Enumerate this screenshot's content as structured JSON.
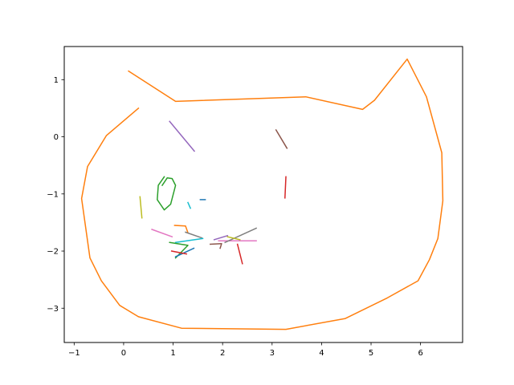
{
  "chart_data": {
    "type": "line",
    "title": "",
    "xlabel": "",
    "ylabel": "",
    "xlim": [
      -1.2,
      6.85
    ],
    "ylim": [
      -3.6,
      1.58
    ],
    "grid": false,
    "x_ticks": [
      -1,
      0,
      1,
      2,
      3,
      4,
      5,
      6
    ],
    "y_ticks": [
      -3,
      -2,
      -1,
      0,
      1
    ],
    "x_tick_labels": [
      "−1",
      "0",
      "1",
      "2",
      "3",
      "4",
      "5",
      "6"
    ],
    "y_tick_labels": [
      "−3",
      "−2",
      "−1",
      "0",
      "1"
    ],
    "series": [
      {
        "color": "#ff7f0e",
        "x": [
          0.3,
          -0.35,
          -0.73,
          -0.85,
          -0.68,
          -0.45,
          -0.08,
          0.3,
          1.17,
          3.28,
          4.48,
          5.33,
          5.95,
          6.18,
          6.35,
          6.45,
          6.43,
          6.12,
          5.73,
          5.07,
          4.83,
          3.68,
          1.05,
          0.1
        ],
        "y": [
          0.5,
          0.02,
          -0.52,
          -1.08,
          -2.12,
          -2.52,
          -2.95,
          -3.15,
          -3.35,
          -3.37,
          -3.18,
          -2.82,
          -2.52,
          -2.15,
          -1.78,
          -1.12,
          -0.28,
          0.7,
          1.36,
          0.64,
          0.48,
          0.7,
          0.62,
          1.15
        ]
      },
      {
        "color": "#9467bd",
        "x": [
          0.93,
          1.43
        ],
        "y": [
          0.27,
          -0.25
        ]
      },
      {
        "color": "#8c564b",
        "x": [
          3.08,
          3.3
        ],
        "y": [
          0.12,
          -0.2
        ]
      },
      {
        "color": "#d62728",
        "x": [
          3.28,
          3.26
        ],
        "y": [
          -0.7,
          -1.07
        ]
      },
      {
        "color": "#2ca02c",
        "x": [
          0.82,
          0.7,
          0.68,
          0.82,
          0.95,
          1.05,
          0.98,
          0.88,
          0.78
        ],
        "y": [
          -0.7,
          -0.85,
          -1.1,
          -1.28,
          -1.18,
          -0.85,
          -0.73,
          -0.72,
          -0.85
        ]
      },
      {
        "color": "#1f77b4",
        "x": [
          1.55,
          1.65
        ],
        "y": [
          -1.1,
          -1.1
        ]
      },
      {
        "color": "#17becf",
        "x": [
          1.3,
          1.35
        ],
        "y": [
          -1.15,
          -1.25
        ]
      },
      {
        "color": "#bcbd22",
        "x": [
          0.33,
          0.37
        ],
        "y": [
          -1.05,
          -1.42
        ]
      },
      {
        "color": "#e377c2",
        "x": [
          0.57,
          0.98
        ],
        "y": [
          -1.62,
          -1.75
        ]
      },
      {
        "color": "#ff7f0e",
        "x": [
          1.03,
          1.25,
          1.3
        ],
        "y": [
          -1.55,
          -1.56,
          -1.68
        ]
      },
      {
        "color": "#7f7f7f",
        "x": [
          1.25,
          1.58
        ],
        "y": [
          -1.67,
          -1.77
        ]
      },
      {
        "color": "#17becf",
        "x": [
          1.05,
          1.6
        ],
        "y": [
          -1.85,
          -1.78
        ]
      },
      {
        "color": "#2ca02c",
        "x": [
          0.93,
          1.3,
          1.05
        ],
        "y": [
          -1.85,
          -1.9,
          -2.12
        ]
      },
      {
        "color": "#1f77b4",
        "x": [
          1.05,
          1.42
        ],
        "y": [
          -2.1,
          -1.95
        ]
      },
      {
        "color": "#d62728",
        "x": [
          0.97,
          1.27
        ],
        "y": [
          -2.0,
          -2.05
        ]
      },
      {
        "color": "#9467bd",
        "x": [
          1.83,
          2.1
        ],
        "y": [
          -1.8,
          -1.73
        ]
      },
      {
        "color": "#e377c2",
        "x": [
          1.92,
          2.68
        ],
        "y": [
          -1.82,
          -1.82
        ]
      },
      {
        "color": "#7f7f7f",
        "x": [
          2.05,
          2.68
        ],
        "y": [
          -1.85,
          -1.6
        ]
      },
      {
        "color": "#bcbd22",
        "x": [
          2.1,
          2.35
        ],
        "y": [
          -1.75,
          -1.8
        ]
      },
      {
        "color": "#8c564b",
        "x": [
          1.75,
          1.98,
          1.95
        ],
        "y": [
          -1.88,
          -1.87,
          -1.95
        ]
      },
      {
        "color": "#d62728",
        "x": [
          2.3,
          2.4
        ],
        "y": [
          -1.88,
          -2.22
        ]
      }
    ]
  }
}
